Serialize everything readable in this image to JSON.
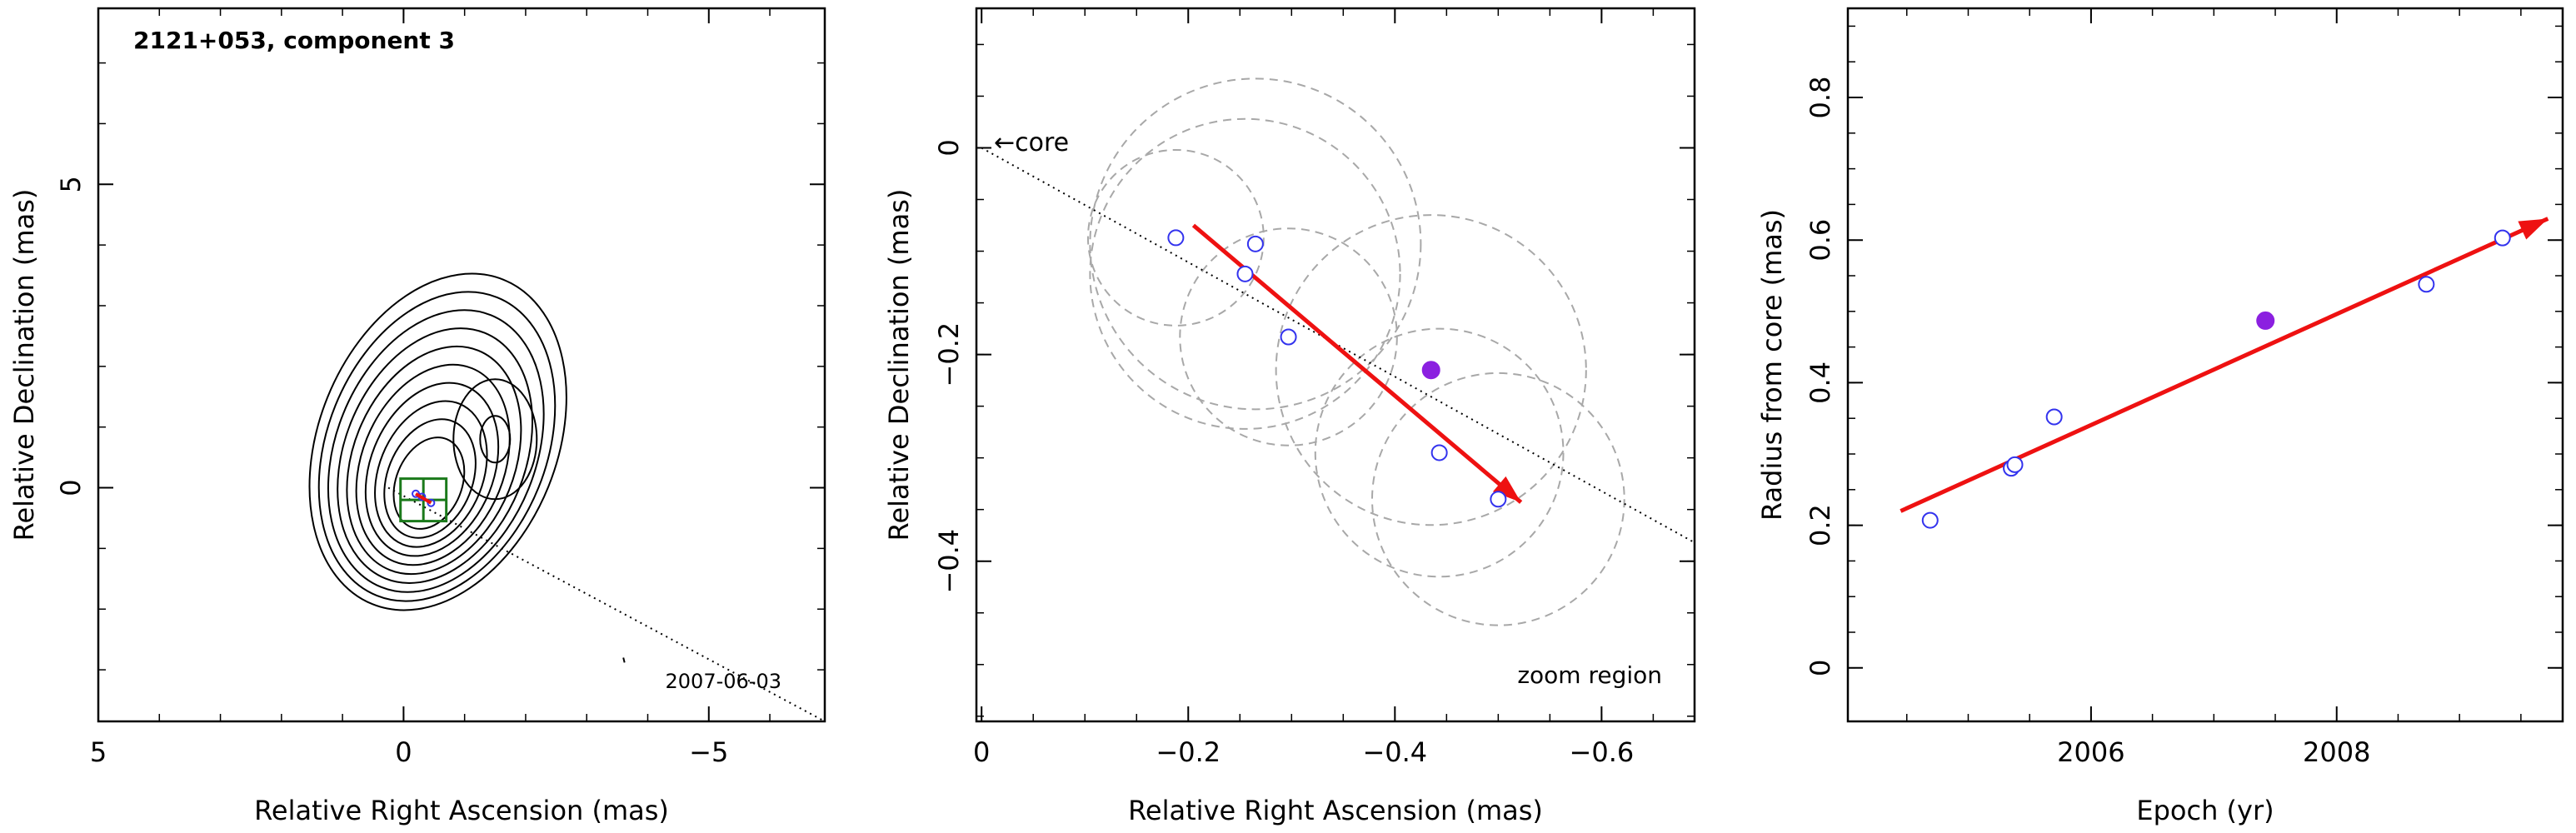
{
  "chart_data": [
    {
      "type": "contour-map",
      "title": "2121+053, component 3",
      "epoch_label": "2007-06-03",
      "xlabel": "Relative Right Ascension (mas)",
      "ylabel": "Relative Declination (mas)",
      "xlim": [
        5,
        -6.9
      ],
      "ylim": [
        -3.85,
        7.9
      ],
      "xticks": [
        5,
        0,
        -5
      ],
      "yticks": [
        5,
        0
      ],
      "contour_center": [
        -0.4,
        0.0
      ],
      "contour_levels": 10,
      "feature_peak": [
        -1.5,
        0.8
      ],
      "direction_line": {
        "from": [
          0.25,
          0.0
        ],
        "to": [
          -6.9,
          -3.85
        ]
      },
      "component_points": [
        [
          -0.2,
          -0.1
        ],
        [
          -0.3,
          -0.15
        ],
        [
          -0.45,
          -0.25
        ]
      ],
      "zoom_box": {
        "x": [
          -0.7,
          0.05
        ],
        "y": [
          -0.55,
          0.15
        ]
      },
      "colors": {
        "contour": "#000000",
        "zoom_box": "#1b7a1b",
        "points": "#3333ee",
        "arrow": "#ee1111",
        "filled": "#8b20e0"
      }
    },
    {
      "type": "scatter",
      "xlabel": "Relative Right Ascension (mas)",
      "ylabel": "Relative Declination (mas)",
      "xlim": [
        0.005,
        -0.69
      ],
      "ylim": [
        -0.555,
        0.135
      ],
      "xticks": [
        0,
        -0.2,
        -0.4,
        -0.6
      ],
      "xtick_labels": [
        "0",
        "−0.2",
        "−0.4",
        "−0.6"
      ],
      "yticks": [
        0,
        -0.2,
        -0.4
      ],
      "ytick_labels": [
        "0",
        "−0.2",
        "−0.4"
      ],
      "core_label": "core",
      "zoom_label": "zoom region",
      "points": [
        {
          "x": -0.188,
          "y": -0.087,
          "r": 0.085
        },
        {
          "x": -0.255,
          "y": -0.122,
          "r": 0.15
        },
        {
          "x": -0.265,
          "y": -0.093,
          "r": 0.16
        },
        {
          "x": -0.297,
          "y": -0.183,
          "r": 0.105
        },
        {
          "x": -0.443,
          "y": -0.295,
          "r": 0.12
        },
        {
          "x": -0.5,
          "y": -0.34,
          "r": 0.122
        }
      ],
      "filled_point": {
        "x": -0.435,
        "y": -0.215,
        "r": 0.15
      },
      "direction_line": {
        "from": [
          0,
          0
        ],
        "to": [
          -0.69,
          -0.382
        ]
      },
      "arrow": {
        "from": [
          -0.205,
          -0.075
        ],
        "to": [
          -0.522,
          -0.343
        ]
      },
      "colors": {
        "points": "#3333ee",
        "filled": "#8b20e0",
        "arrow": "#ee1111",
        "circles": "#a8a8a8"
      }
    },
    {
      "type": "scatter",
      "xlabel": "Epoch (yr)",
      "ylabel": "Radius from core (mas)",
      "xlim": [
        2004.02,
        2009.84
      ],
      "ylim": [
        -0.075,
        0.925
      ],
      "xticks": [
        2006,
        2008
      ],
      "yticks": [
        0,
        0.2,
        0.4,
        0.6,
        0.8
      ],
      "ytick_labels": [
        "0",
        "0.2",
        "0.4",
        "0.6",
        "0.8"
      ],
      "points": [
        {
          "x": 2004.69,
          "y": 0.207
        },
        {
          "x": 2005.35,
          "y": 0.28
        },
        {
          "x": 2005.38,
          "y": 0.285
        },
        {
          "x": 2005.7,
          "y": 0.352
        },
        {
          "x": 2008.73,
          "y": 0.538
        },
        {
          "x": 2009.35,
          "y": 0.603
        }
      ],
      "filled_point": {
        "x": 2007.42,
        "y": 0.487
      },
      "fit_arrow": {
        "from": [
          2004.45,
          0.22
        ],
        "to": [
          2009.72,
          0.63
        ]
      },
      "colors": {
        "points": "#3333ee",
        "filled": "#8b20e0",
        "arrow": "#ee1111"
      }
    }
  ]
}
